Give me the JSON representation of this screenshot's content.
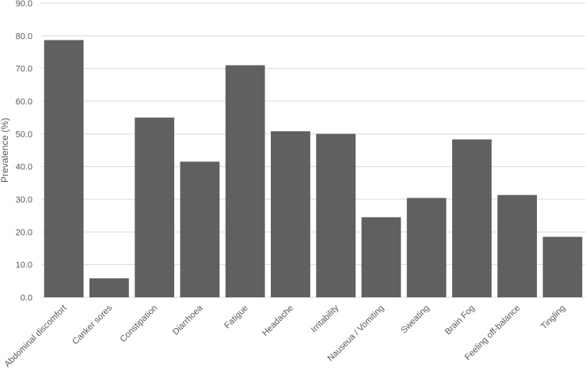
{
  "chart_data": {
    "type": "bar",
    "y_label": "Prevalence (%)",
    "categories": [
      "Abdominal discomfort",
      "Canker sores",
      "Constipation",
      "Diarrhoea",
      "Fatigue",
      "Headache",
      "Irritability",
      "Nauseua / Vomiting",
      "Sweating",
      "Brain Fog",
      "Feeling off-balance",
      "Tingling"
    ],
    "values": [
      78.7,
      5.8,
      55.0,
      41.5,
      71.0,
      50.8,
      50.0,
      24.5,
      30.4,
      48.3,
      31.3,
      18.5
    ],
    "color": "#606060",
    "ylim": [
      0,
      90
    ],
    "yticks": [
      {
        "value": 0,
        "label": "0.0"
      },
      {
        "value": 10,
        "label": "10.0"
      },
      {
        "value": 20,
        "label": "20.0"
      },
      {
        "value": 30,
        "label": "30.0"
      },
      {
        "value": 40,
        "label": "40.0"
      },
      {
        "value": 50,
        "label": "50.0"
      },
      {
        "value": 60,
        "label": "60.0"
      },
      {
        "value": 70,
        "label": "70.0"
      },
      {
        "value": 80,
        "label": "80.0"
      },
      {
        "value": 90,
        "label": "90.0"
      }
    ],
    "grid": true
  }
}
